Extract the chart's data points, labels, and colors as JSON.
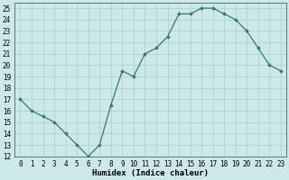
{
  "x": [
    0,
    1,
    2,
    3,
    4,
    5,
    6,
    7,
    8,
    9,
    10,
    11,
    12,
    13,
    14,
    15,
    16,
    17,
    18,
    19,
    20,
    21,
    22,
    23
  ],
  "y": [
    17,
    16,
    15.5,
    15,
    14,
    13,
    12,
    13,
    16.5,
    19.5,
    19,
    21,
    21.5,
    22.5,
    24.5,
    24.5,
    25,
    25,
    24.5,
    24,
    23,
    21.5,
    20,
    19.5
  ],
  "line_color": "#2e7d6e",
  "marker": "D",
  "marker_size": 2.0,
  "bg_color": "#cce8e8",
  "grid_color": "#aacece",
  "xlabel": "Humidex (Indice chaleur)",
  "xlim": [
    -0.5,
    23.5
  ],
  "ylim": [
    12,
    25.5
  ],
  "yticks": [
    12,
    13,
    14,
    15,
    16,
    17,
    18,
    19,
    20,
    21,
    22,
    23,
    24,
    25
  ],
  "xticks": [
    0,
    1,
    2,
    3,
    4,
    5,
    6,
    7,
    8,
    9,
    10,
    11,
    12,
    13,
    14,
    15,
    16,
    17,
    18,
    19,
    20,
    21,
    22,
    23
  ],
  "tick_fontsize": 5.5,
  "label_fontsize": 6.5,
  "linewidth": 0.9
}
